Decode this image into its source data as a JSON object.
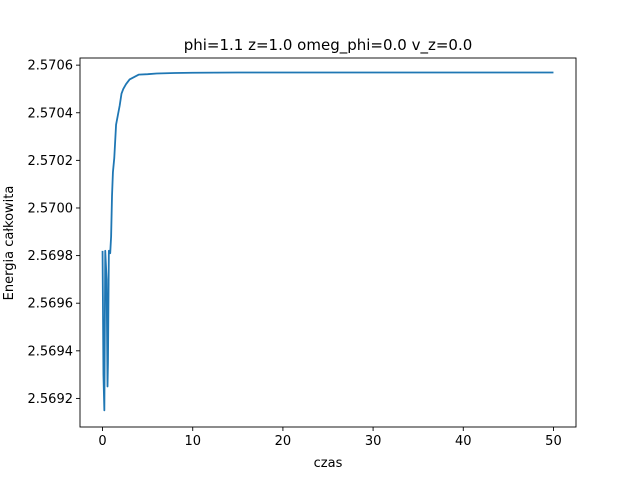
{
  "chart_data": {
    "type": "line",
    "title": "phi=1.1 z=1.0 omeg_phi=0.0 v_z=0.0",
    "xlabel": "czas",
    "ylabel": "Energia całkowita",
    "xlim": [
      -2.5,
      52.5
    ],
    "ylim": [
      2.56908,
      2.57063
    ],
    "grid": false,
    "legend": "none",
    "x_ticks": [
      0,
      10,
      20,
      30,
      40,
      50
    ],
    "x_tick_labels": [
      "0",
      "10",
      "20",
      "30",
      "40",
      "50"
    ],
    "y_ticks": [
      2.5692,
      2.5694,
      2.5696,
      2.5698,
      2.57,
      2.5702,
      2.5704,
      2.5706
    ],
    "y_tick_labels": [
      "2.5692",
      "2.5694",
      "2.5696",
      "2.5698",
      "2.5700",
      "2.5702",
      "2.5704",
      "2.5706"
    ],
    "line_color": "#1f77b4",
    "series": [
      {
        "x": [
          0,
          0.1,
          0.2,
          0.3,
          0.45,
          0.55,
          0.6,
          0.7,
          0.75,
          0.85,
          0.95,
          1.05,
          1.15,
          1.3,
          1.5,
          1.7,
          1.9,
          2.1,
          2.3,
          2.6,
          3.0,
          3.5,
          4.0,
          5.0,
          6.0,
          8.0,
          10.0,
          15.0,
          20.0,
          30.0,
          40.0,
          50.0
        ],
        "y": [
          2.56982,
          2.5693,
          2.56915,
          2.56982,
          2.5697,
          2.56925,
          2.56935,
          2.56982,
          2.56982,
          2.56981,
          2.56988,
          2.57005,
          2.57015,
          2.57021,
          2.57035,
          2.57039,
          2.57043,
          2.57048,
          2.5705,
          2.57052,
          2.57054,
          2.57055,
          2.57056,
          2.570562,
          2.570565,
          2.570567,
          2.570568,
          2.570569,
          2.570569,
          2.570569,
          2.570569,
          2.570569
        ]
      }
    ]
  }
}
